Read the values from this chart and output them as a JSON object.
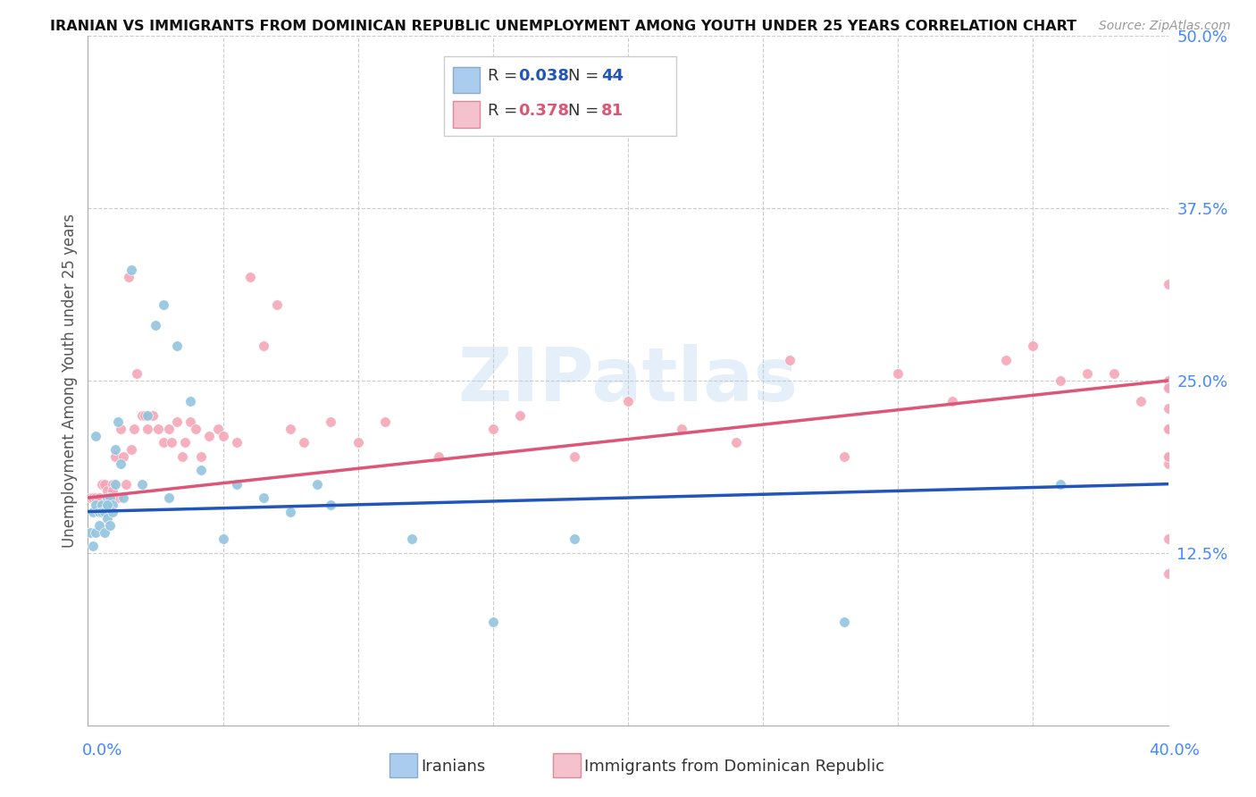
{
  "title": "IRANIAN VS IMMIGRANTS FROM DOMINICAN REPUBLIC UNEMPLOYMENT AMONG YOUTH UNDER 25 YEARS CORRELATION CHART",
  "source": "Source: ZipAtlas.com",
  "ylabel": "Unemployment Among Youth under 25 years",
  "blue_color": "#92c5de",
  "pink_color": "#f4a6b8",
  "line_blue": "#2255bb",
  "line_pink": "#dd5577",
  "background_color": "#ffffff",
  "grid_color": "#cccccc",
  "watermark": "ZIPatlas",
  "xlim": [
    0.0,
    0.4
  ],
  "ylim": [
    0.0,
    0.5
  ],
  "iran_R": 0.038,
  "iran_N": 44,
  "dr_R": 0.378,
  "dr_N": 81,
  "iranians_x": [
    0.001,
    0.002,
    0.002,
    0.003,
    0.003,
    0.004,
    0.004,
    0.005,
    0.005,
    0.006,
    0.006,
    0.007,
    0.007,
    0.008,
    0.008,
    0.009,
    0.009,
    0.01,
    0.01,
    0.011,
    0.013,
    0.016,
    0.02,
    0.022,
    0.025,
    0.028,
    0.03,
    0.033,
    0.038,
    0.042,
    0.05,
    0.055,
    0.065,
    0.075,
    0.085,
    0.09,
    0.12,
    0.15,
    0.18,
    0.28,
    0.36,
    0.003,
    0.007,
    0.012
  ],
  "iranians_y": [
    0.14,
    0.155,
    0.13,
    0.16,
    0.14,
    0.155,
    0.145,
    0.16,
    0.155,
    0.155,
    0.14,
    0.165,
    0.15,
    0.145,
    0.165,
    0.16,
    0.155,
    0.175,
    0.2,
    0.22,
    0.165,
    0.33,
    0.175,
    0.225,
    0.29,
    0.305,
    0.165,
    0.275,
    0.235,
    0.185,
    0.135,
    0.175,
    0.165,
    0.155,
    0.175,
    0.16,
    0.135,
    0.075,
    0.135,
    0.075,
    0.175,
    0.21,
    0.16,
    0.19
  ],
  "dr_x": [
    0.001,
    0.002,
    0.003,
    0.004,
    0.005,
    0.006,
    0.006,
    0.007,
    0.008,
    0.009,
    0.009,
    0.01,
    0.011,
    0.012,
    0.013,
    0.014,
    0.015,
    0.016,
    0.017,
    0.018,
    0.02,
    0.021,
    0.022,
    0.024,
    0.026,
    0.028,
    0.03,
    0.031,
    0.033,
    0.035,
    0.036,
    0.038,
    0.04,
    0.042,
    0.045,
    0.048,
    0.05,
    0.055,
    0.06,
    0.065,
    0.07,
    0.075,
    0.08,
    0.09,
    0.1,
    0.11,
    0.13,
    0.15,
    0.16,
    0.18,
    0.2,
    0.22,
    0.24,
    0.26,
    0.28,
    0.3,
    0.32,
    0.34,
    0.35,
    0.36,
    0.37,
    0.38,
    0.39,
    0.4,
    0.4,
    0.4,
    0.4,
    0.4,
    0.4,
    0.4,
    0.4,
    0.4,
    0.4,
    0.4,
    0.4,
    0.4,
    0.4,
    0.4,
    0.4,
    0.4,
    0.4
  ],
  "dr_y": [
    0.165,
    0.165,
    0.165,
    0.165,
    0.175,
    0.16,
    0.175,
    0.17,
    0.165,
    0.175,
    0.17,
    0.195,
    0.165,
    0.215,
    0.195,
    0.175,
    0.325,
    0.2,
    0.215,
    0.255,
    0.225,
    0.225,
    0.215,
    0.225,
    0.215,
    0.205,
    0.215,
    0.205,
    0.22,
    0.195,
    0.205,
    0.22,
    0.215,
    0.195,
    0.21,
    0.215,
    0.21,
    0.205,
    0.325,
    0.275,
    0.305,
    0.215,
    0.205,
    0.22,
    0.205,
    0.22,
    0.195,
    0.215,
    0.225,
    0.195,
    0.235,
    0.215,
    0.205,
    0.265,
    0.195,
    0.255,
    0.235,
    0.265,
    0.275,
    0.25,
    0.255,
    0.255,
    0.235,
    0.25,
    0.245,
    0.215,
    0.195,
    0.245,
    0.245,
    0.19,
    0.245,
    0.215,
    0.11,
    0.245,
    0.135,
    0.23,
    0.245,
    0.195,
    0.245,
    0.195,
    0.32
  ]
}
